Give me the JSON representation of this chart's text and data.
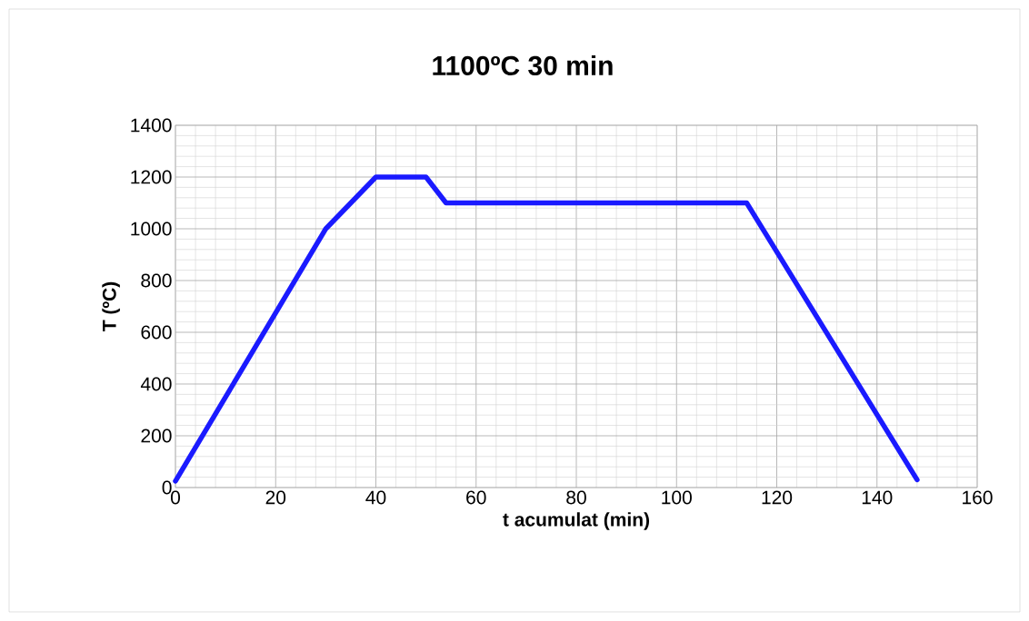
{
  "chart_data": {
    "type": "line",
    "title": "1100ºC 30 min",
    "xlabel": "t acumulat (min)",
    "ylabel": "T (ºC)",
    "x": [
      0,
      30,
      40,
      50,
      54,
      114,
      148
    ],
    "series": [
      {
        "color": "#1a1aff",
        "values": [
          25,
          1000,
          1200,
          1200,
          1100,
          1100,
          30
        ]
      }
    ],
    "xlim": [
      0,
      160
    ],
    "ylim": [
      0,
      1400
    ],
    "xticks": [
      0,
      20,
      40,
      60,
      80,
      100,
      120,
      140,
      160
    ],
    "yticks": [
      0,
      200,
      400,
      600,
      800,
      1000,
      1200,
      1400
    ],
    "grid": true,
    "marker": "none",
    "line_style": "solid"
  }
}
